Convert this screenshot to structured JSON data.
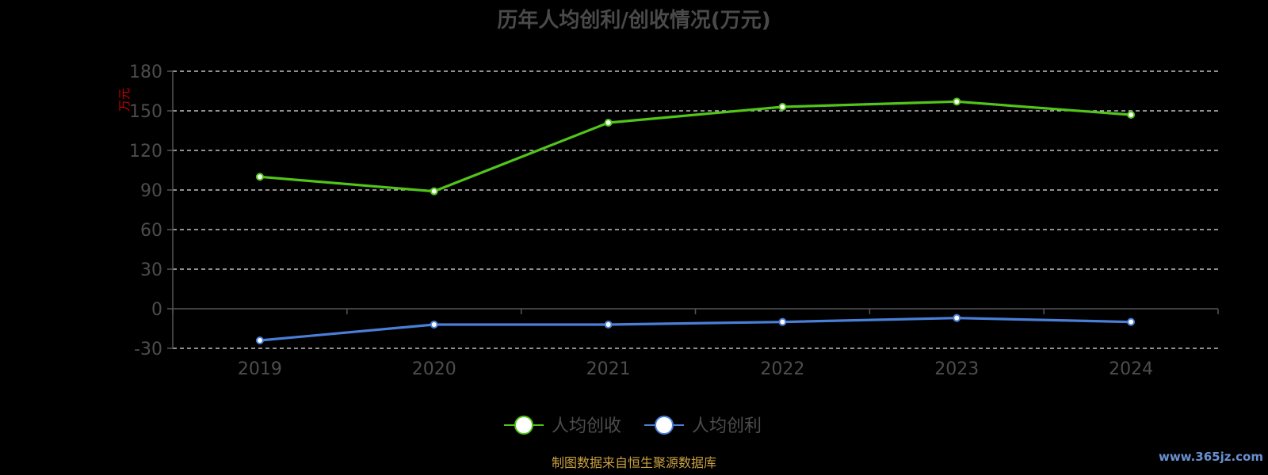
{
  "chart_data": {
    "type": "line",
    "title": "历年人均创利/创收情况(万元)",
    "y_unit": "万元",
    "categories": [
      "2019",
      "2020",
      "2021",
      "2022",
      "2023",
      "2024"
    ],
    "ylim": [
      -30,
      180
    ],
    "yticks": [
      180,
      150,
      120,
      90,
      60,
      30,
      0,
      -30
    ],
    "grid": true,
    "legend_position": "bottom-center",
    "series": [
      {
        "name": "人均创收",
        "color": "#52c41a",
        "values": [
          100,
          89,
          141,
          153,
          157,
          147
        ]
      },
      {
        "name": "人均创利",
        "color": "#4a7fd8",
        "values": [
          -24,
          -12,
          -12,
          -10,
          -7,
          -10
        ]
      }
    ]
  },
  "footer": {
    "source": "制图数据来自恒生聚源数据库"
  },
  "watermark": {
    "text": "www.365jz.com"
  }
}
